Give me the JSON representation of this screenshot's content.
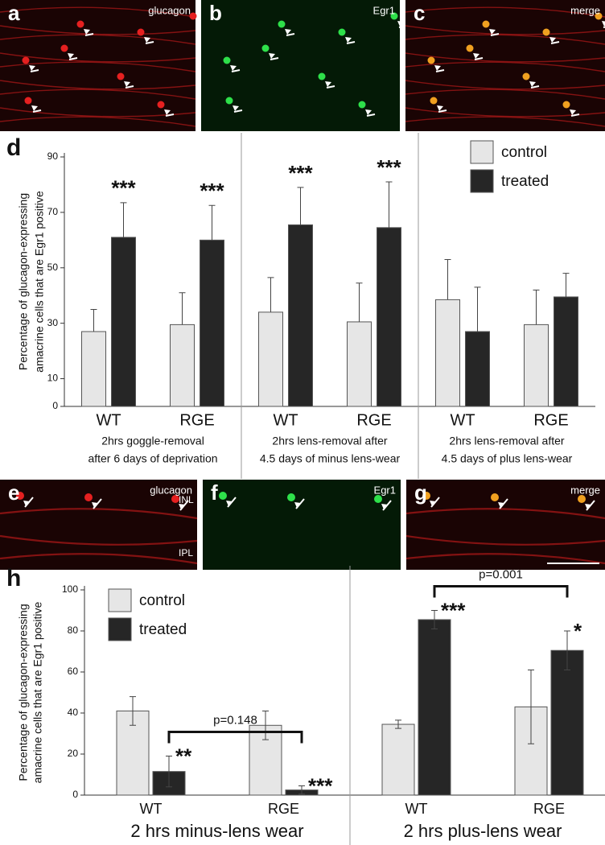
{
  "panels": [
    {
      "letter": "a",
      "label": "glucagon"
    },
    {
      "letter": "b",
      "label": "Egr1"
    },
    {
      "letter": "c",
      "label": "merge"
    },
    {
      "letter": "e",
      "label": "glucagon",
      "layers": [
        "INL",
        "IPL"
      ]
    },
    {
      "letter": "f",
      "label": "Egr1"
    },
    {
      "letter": "g",
      "label": "merge"
    }
  ],
  "chart_data": [
    {
      "type": "bar",
      "letter": "d",
      "ylabel": [
        "Percentage of glucagon-expressing",
        "amacrine cells that are Egr1 positive"
      ],
      "categories": [
        "WT",
        "RGE",
        "WT",
        "RGE",
        "WT",
        "RGE"
      ],
      "groups": [
        [
          "2hrs goggle-removal",
          "after 6 days of deprivation"
        ],
        [
          "2hrs lens-removal after",
          "4.5 days of minus lens-wear"
        ],
        [
          "2hrs lens-removal after",
          "4.5 days of plus lens-wear"
        ]
      ],
      "series": [
        {
          "name": "control",
          "color": "#e6e6e6",
          "values": [
            27,
            29.5,
            34,
            30.5,
            38.5,
            29.5
          ],
          "errors": [
            8,
            11.5,
            12.5,
            14,
            14.5,
            12.5
          ]
        },
        {
          "name": "treated",
          "color": "#262626",
          "values": [
            61,
            60,
            65.5,
            64.5,
            27,
            39.5
          ],
          "errors": [
            12.5,
            12.5,
            13.5,
            16.5,
            16,
            8.5
          ],
          "significance": [
            "***",
            "***",
            "***",
            "***",
            null,
            null
          ]
        }
      ],
      "ylim": [
        0,
        90
      ],
      "yticks": [
        0,
        10,
        30,
        50,
        70,
        90
      ],
      "legend": "top-right"
    },
    {
      "type": "bar",
      "letter": "h",
      "ylabel": [
        "Percentage of glucagon-expressing",
        "amacrine cells that are Egr1 positive"
      ],
      "categories": [
        "WT",
        "RGE",
        "WT",
        "RGE"
      ],
      "groups": [
        [
          "2 hrs minus-lens wear"
        ],
        [
          "2 hrs plus-lens wear"
        ]
      ],
      "series": [
        {
          "name": "control",
          "color": "#e6e6e6",
          "values": [
            41,
            34,
            34.5,
            43
          ],
          "errors": [
            7,
            7,
            2,
            18
          ]
        },
        {
          "name": "treated",
          "color": "#262626",
          "values": [
            11.5,
            2.5,
            85.5,
            70.5
          ],
          "errors": [
            7.5,
            2,
            4.5,
            9.5
          ],
          "significance": [
            "**",
            "***",
            "***",
            "*"
          ]
        }
      ],
      "comparisons": [
        "p=0.148",
        "p=0.001"
      ],
      "ylim": [
        0,
        100
      ],
      "yticks": [
        0,
        20,
        40,
        60,
        80,
        100
      ],
      "legend": "top-left"
    }
  ]
}
